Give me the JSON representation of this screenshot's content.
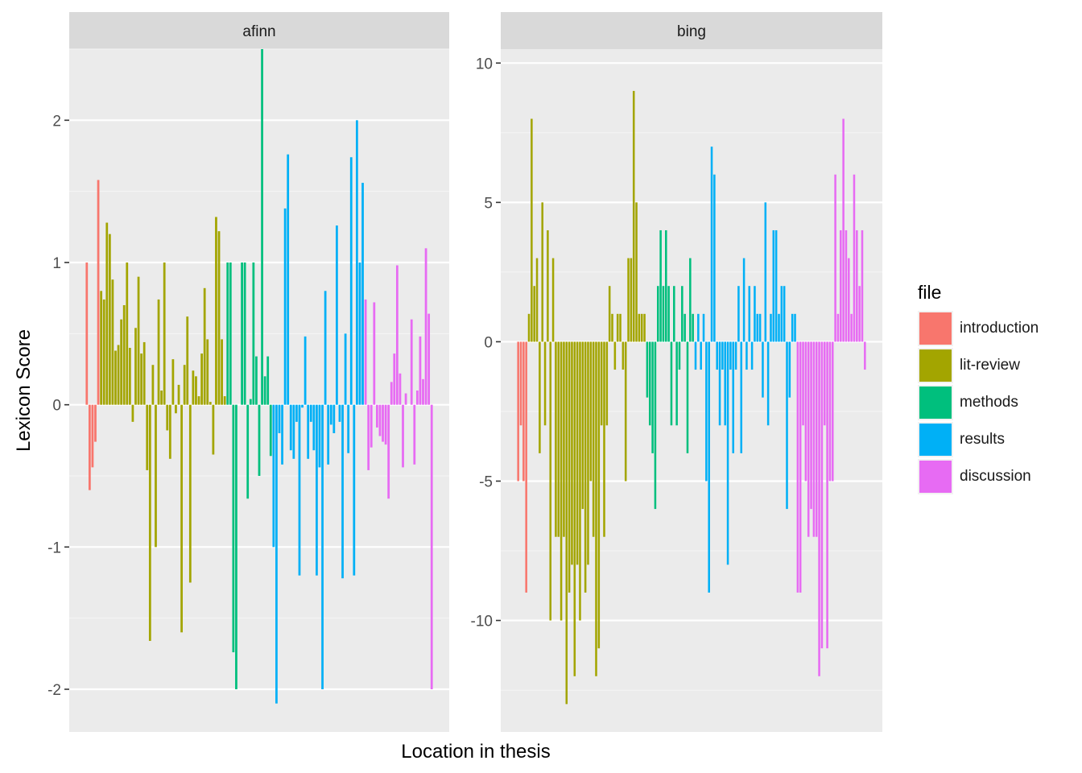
{
  "chart_data": {
    "type": "bar",
    "xlabel": "Location in thesis",
    "ylabel": "Lexicon Score",
    "legend": {
      "title": "file",
      "placement": "right",
      "entries": [
        {
          "name": "introduction",
          "color": "#F8766D"
        },
        {
          "name": "lit-review",
          "color": "#A3A500"
        },
        {
          "name": "methods",
          "color": "#00BF7D"
        },
        {
          "name": "results",
          "color": "#00B0F6"
        },
        {
          "name": "discussion",
          "color": "#E76BF3"
        }
      ]
    },
    "grid": true,
    "panels": [
      {
        "title": "afinn",
        "ylim": [
          -2.3,
          2.5
        ],
        "yticks": [
          -2,
          -1,
          0,
          1,
          2
        ],
        "ytick_labels": [
          "-2",
          "-1",
          "0",
          "1",
          "2"
        ],
        "series": [
          {
            "name": "introduction",
            "values": [
              1.0,
              -0.6,
              -0.44,
              -0.26,
              1.58
            ]
          },
          {
            "name": "lit-review",
            "values": [
              0.8,
              0.74,
              1.28,
              1.2,
              0.88,
              0.38,
              0.42,
              0.6,
              0.7,
              1.0,
              0.4,
              -0.12,
              0.54,
              0.9,
              0.36,
              0.44,
              -0.46,
              -1.66,
              0.28,
              -1.0,
              0.74,
              0.1,
              1.0,
              -0.18,
              -0.38,
              0.32,
              -0.06,
              0.14,
              -1.6,
              0.28,
              0.62,
              -1.25,
              0.24,
              0.2,
              0.06,
              0.36,
              0.82,
              0.46,
              0.02,
              -0.35,
              1.32,
              1.22,
              0.46,
              0.06
            ]
          },
          {
            "name": "methods",
            "values": [
              1.0,
              1.0,
              -1.74,
              -2.0,
              0.0,
              1.0,
              1.0,
              -0.66,
              0.04,
              1.0,
              0.34,
              -0.5,
              2.5,
              0.2,
              0.34,
              -0.36
            ]
          },
          {
            "name": "results",
            "values": [
              -1.0,
              -2.1,
              -0.2,
              -0.42,
              1.38,
              1.76,
              -0.32,
              -0.38,
              -0.12,
              -1.2,
              -0.02,
              0.48,
              -0.38,
              -0.12,
              -0.32,
              -1.2,
              -0.44,
              -2.0,
              0.8,
              -0.42,
              -0.14,
              -0.2,
              1.26,
              -0.12,
              -1.22,
              0.5,
              -0.34,
              1.74,
              -1.2,
              2.0,
              1.0,
              1.56
            ]
          },
          {
            "name": "discussion",
            "values": [
              0.74,
              -0.46,
              -0.3,
              0.72,
              -0.16,
              -0.22,
              -0.26,
              -0.28,
              -0.66,
              0.16,
              0.36,
              0.98,
              0.22,
              -0.44,
              0.08,
              0.0,
              0.6,
              -0.42,
              0.1,
              0.48,
              0.18,
              1.1,
              0.64,
              -2.0
            ]
          }
        ]
      },
      {
        "title": "bing",
        "ylim": [
          -14,
          10.5
        ],
        "yticks": [
          -10,
          -5,
          0,
          5,
          10
        ],
        "ytick_labels": [
          "-10",
          "-5",
          "0",
          "5",
          "10"
        ],
        "series": [
          {
            "name": "introduction",
            "values": [
              -5,
              -3,
              -5,
              -9
            ]
          },
          {
            "name": "lit-review",
            "values": [
              1,
              8,
              2,
              3,
              -4,
              5,
              -3,
              4,
              -10,
              3,
              -7,
              -7,
              -10,
              -7,
              -13,
              -9,
              -8,
              -12,
              -8,
              -10,
              -6,
              -9,
              -8,
              -5,
              -7,
              -12,
              -11,
              -3,
              -7,
              -3,
              2,
              1,
              -1,
              1,
              1,
              -1,
              -5,
              3,
              3,
              9,
              5,
              1,
              1,
              1
            ]
          },
          {
            "name": "methods",
            "values": [
              -2,
              -3,
              -4,
              -6,
              2,
              4,
              2,
              4,
              2,
              -3,
              2,
              -3,
              -1,
              2,
              1,
              -4,
              3,
              1
            ]
          },
          {
            "name": "results",
            "values": [
              -1,
              1,
              -1,
              1,
              -5,
              -9,
              7,
              6,
              -1,
              -3,
              -1,
              -3,
              -8,
              -1,
              -4,
              -1,
              2,
              -4,
              3,
              -1,
              2,
              -1,
              2,
              1,
              1,
              -2,
              5,
              -3,
              1,
              4,
              4,
              1,
              2,
              2,
              -6,
              -2,
              1,
              1
            ]
          },
          {
            "name": "discussion",
            "values": [
              -9,
              -9,
              -3,
              -5,
              -7,
              -6,
              -7,
              -7,
              -12,
              -11,
              -3,
              -11,
              -5,
              -5,
              6,
              1,
              4,
              8,
              4,
              3,
              1,
              6,
              4,
              2,
              4,
              -1
            ]
          }
        ]
      }
    ]
  }
}
